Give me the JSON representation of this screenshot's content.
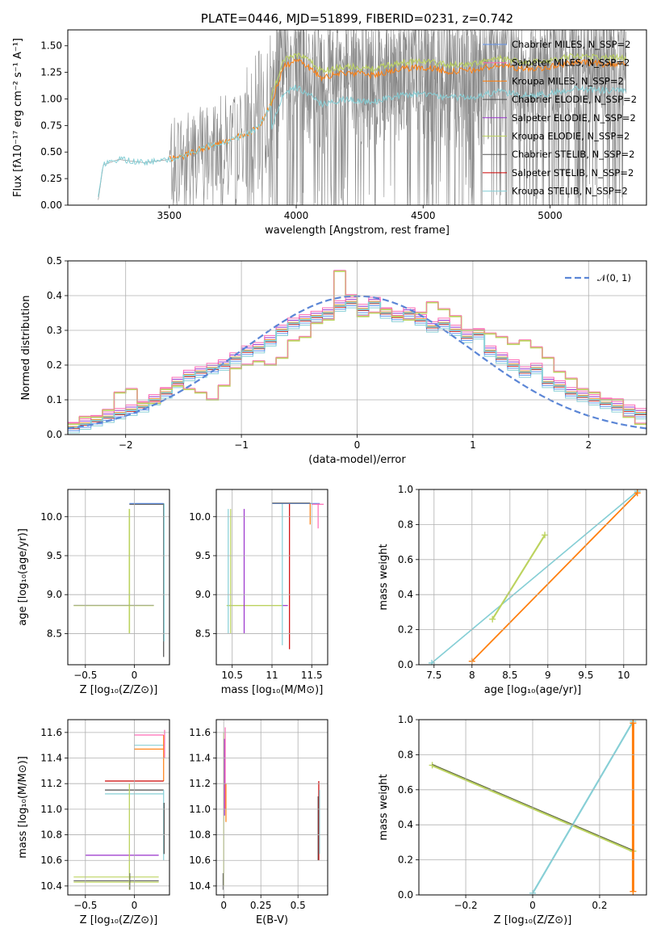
{
  "chart_data": [
    {
      "type": "line",
      "title": "PLATE=0446, MJD=51899, FIBERID=0231, z=0.742",
      "xlabel": "wavelength [Angstrom, rest frame]",
      "ylabel": "Flux [fλ10⁻¹⁷ erg cm⁻² s⁻¹ A⁻¹]",
      "xlim": [
        3100,
        5380
      ],
      "ylim": [
        0,
        1.65
      ],
      "xticks": [
        3500,
        4000,
        4500,
        5000
      ],
      "yticks": [
        0.0,
        0.25,
        0.5,
        0.75,
        1.0,
        1.25,
        1.5
      ],
      "grid": false,
      "legend_placement": "upper-right",
      "series": [
        {
          "name": "Chabrier MILES, N_SSP=2",
          "color": "#6495ed"
        },
        {
          "name": "Salpeter MILES, N_SSP=2",
          "color": "#ff69b4"
        },
        {
          "name": "Kroupa MILES, N_SSP=2",
          "color": "#ff7f0e"
        },
        {
          "name": "Chabrier ELODIE, N_SSP=2",
          "color": "#4d4d4d"
        },
        {
          "name": "Salpeter ELODIE, N_SSP=2",
          "color": "#9932cc"
        },
        {
          "name": "Kroupa ELODIE, N_SSP=2",
          "color": "#bcd35f"
        },
        {
          "name": "Chabrier STELIB, N_SSP=2",
          "color": "#555555"
        },
        {
          "name": "Salpeter STELIB, N_SSP=2",
          "color": "#cc0000"
        },
        {
          "name": "Kroupa STELIB, N_SSP=2",
          "color": "#87cfd6"
        }
      ],
      "data_profile": {
        "x": [
          3220,
          3240,
          3300,
          3400,
          3500,
          3550,
          3650,
          3750,
          3850,
          3900,
          3950,
          4000,
          4050,
          4100,
          4200,
          4300,
          4400,
          4500,
          4600,
          4700,
          4800,
          4900,
          5000,
          5100,
          5200
        ],
        "y": [
          0.05,
          0.38,
          0.43,
          0.4,
          0.43,
          0.46,
          0.55,
          0.62,
          0.72,
          0.95,
          1.3,
          1.36,
          1.3,
          1.2,
          1.25,
          1.22,
          1.28,
          1.3,
          1.26,
          1.27,
          1.32,
          1.28,
          1.3,
          1.35,
          1.33
        ]
      }
    },
    {
      "type": "area",
      "xlabel": "(data-model)/error",
      "ylabel": "Normed distribution",
      "xlim": [
        -2.5,
        2.5
      ],
      "ylim": [
        0,
        0.5
      ],
      "xticks": [
        -2,
        -1,
        0,
        1,
        2
      ],
      "yticks": [
        0.0,
        0.1,
        0.2,
        0.3,
        0.4,
        0.5
      ],
      "grid": true,
      "legend_placement": "upper-right",
      "legend": [
        "𝒩(0, 1)"
      ],
      "bin_edges_start": -2.5,
      "bin_width": 0.1,
      "hist_a": [
        0.02,
        0.03,
        0.04,
        0.05,
        0.06,
        0.07,
        0.08,
        0.1,
        0.12,
        0.15,
        0.17,
        0.18,
        0.19,
        0.2,
        0.22,
        0.24,
        0.25,
        0.27,
        0.3,
        0.32,
        0.33,
        0.34,
        0.35,
        0.37,
        0.38,
        0.36,
        0.38,
        0.35,
        0.34,
        0.35,
        0.33,
        0.31,
        0.32,
        0.3,
        0.28,
        0.29,
        0.24,
        0.22,
        0.2,
        0.18,
        0.19,
        0.15,
        0.14,
        0.12,
        0.11,
        0.1,
        0.09,
        0.08,
        0.07,
        0.06
      ],
      "hist_b": [
        0.03,
        0.05,
        0.05,
        0.07,
        0.12,
        0.13,
        0.09,
        0.09,
        0.13,
        0.14,
        0.13,
        0.12,
        0.1,
        0.14,
        0.19,
        0.2,
        0.21,
        0.2,
        0.22,
        0.27,
        0.28,
        0.32,
        0.33,
        0.47,
        0.4,
        0.34,
        0.35,
        0.36,
        0.34,
        0.33,
        0.35,
        0.38,
        0.36,
        0.34,
        0.3,
        0.3,
        0.29,
        0.28,
        0.26,
        0.27,
        0.25,
        0.22,
        0.18,
        0.16,
        0.13,
        0.12,
        0.1,
        0.1,
        0.05,
        0.03
      ],
      "normal_curve": {
        "mu": 0,
        "sigma": 1,
        "color": "#5b86d6"
      }
    },
    {
      "type": "scatter",
      "xlabel": "Z [log₁₀(Z/Z⊙)]",
      "ylabel": "age  [log₁₀(age/yr)]",
      "xlim": [
        -0.68,
        0.36
      ],
      "ylim": [
        8.1,
        10.35
      ],
      "xticks": [
        -0.5,
        0.0
      ],
      "yticks": [
        8.5,
        9.0,
        9.5,
        10.0
      ],
      "grid": true,
      "points": [
        {
          "x": 0.3,
          "y": 10.18,
          "xerr": [
            0.0,
            0.3
          ],
          "yerr": [
            2.0,
            0.0
          ],
          "color": "#6495ed"
        },
        {
          "x": -0.05,
          "y": 8.86,
          "xerr": [
            0.6,
            0.35
          ],
          "yerr": [
            0.35,
            1.25
          ],
          "color": "#bcd35f"
        },
        {
          "x": 0.3,
          "y": 10.18,
          "xerr": [
            0.0,
            0.0
          ],
          "yerr": [
            1.95,
            0.0
          ],
          "color": "#4d4d4d"
        }
      ]
    },
    {
      "type": "scatter",
      "xlabel": "mass [log₁₀(M/M⊙)]",
      "ylabel": "",
      "xlim": [
        10.3,
        11.7
      ],
      "ylim": [
        8.1,
        10.35
      ],
      "xticks": [
        10.5,
        11.0,
        11.5
      ],
      "yticks": [
        8.5,
        9.0,
        9.5,
        10.0
      ],
      "grid": true,
      "points": [
        {
          "x": 10.46,
          "y": 8.86,
          "color": "#bcd35f"
        },
        {
          "x": 10.65,
          "y": 10.1,
          "color": "#9932cc"
        },
        {
          "x": 11.13,
          "y": 10.17,
          "color": "#87cfd6"
        },
        {
          "x": 11.22,
          "y": 10.17,
          "color": "#cc0000"
        },
        {
          "x": 11.48,
          "y": 10.17,
          "color": "#ff7f0e"
        },
        {
          "x": 11.6,
          "y": 10.17,
          "color": "#ff69b4"
        }
      ]
    },
    {
      "type": "line",
      "xlabel": "age  [log₁₀(age/yr)]",
      "ylabel": "mass weight",
      "xlim": [
        7.3,
        10.3
      ],
      "ylim": [
        0.0,
        1.0
      ],
      "xticks": [
        7.5,
        8.0,
        8.5,
        9.0,
        9.5,
        10.0
      ],
      "yticks": [
        0.0,
        0.2,
        0.4,
        0.6,
        0.8,
        1.0
      ],
      "grid": true,
      "lines": [
        {
          "x": [
            7.47,
            10.18
          ],
          "y": [
            0.01,
            0.99
          ],
          "color": "#87cfd6"
        },
        {
          "x": [
            8.0,
            10.18
          ],
          "y": [
            0.02,
            0.98
          ],
          "color": "#ff7f0e"
        },
        {
          "x": [
            8.27,
            8.96
          ],
          "y": [
            0.26,
            0.74
          ],
          "color": "#bcd35f"
        }
      ]
    },
    {
      "type": "scatter",
      "xlabel": "Z [log₁₀(Z/Z⊙)]",
      "ylabel": "mass [log₁₀(M/M⊙)]",
      "xlim": [
        -0.68,
        0.36
      ],
      "ylim": [
        10.33,
        11.7
      ],
      "xticks": [
        -0.5,
        0.0
      ],
      "yticks": [
        10.4,
        10.6,
        10.8,
        11.0,
        11.2,
        11.4,
        11.6
      ],
      "grid": true
    },
    {
      "type": "scatter",
      "xlabel": "E(B-V)",
      "ylabel": "",
      "xlim": [
        -0.05,
        0.7
      ],
      "ylim": [
        10.33,
        11.7
      ],
      "xticks": [
        0.0,
        0.25,
        0.5
      ],
      "yticks": [
        10.4,
        10.6,
        10.8,
        11.0,
        11.2,
        11.4,
        11.6
      ],
      "grid": true
    },
    {
      "type": "line",
      "xlabel": "Z [log₁₀(Z/Z⊙)]",
      "ylabel": "mass weight",
      "xlim": [
        -0.34,
        0.34
      ],
      "ylim": [
        0.0,
        1.0
      ],
      "xticks": [
        -0.2,
        0.0,
        0.2
      ],
      "yticks": [
        0.0,
        0.2,
        0.4,
        0.6,
        0.8,
        1.0
      ],
      "grid": true,
      "lines": [
        {
          "x": [
            -0.3,
            0.3
          ],
          "y": [
            0.74,
            0.25
          ],
          "color": "#bcd35f"
        },
        {
          "x": [
            0.0,
            0.3
          ],
          "y": [
            0.01,
            0.99
          ],
          "color": "#87cfd6"
        },
        {
          "x": [
            0.3,
            0.3
          ],
          "y": [
            0.02,
            0.98
          ],
          "color": "#ff7f0e"
        }
      ]
    }
  ]
}
